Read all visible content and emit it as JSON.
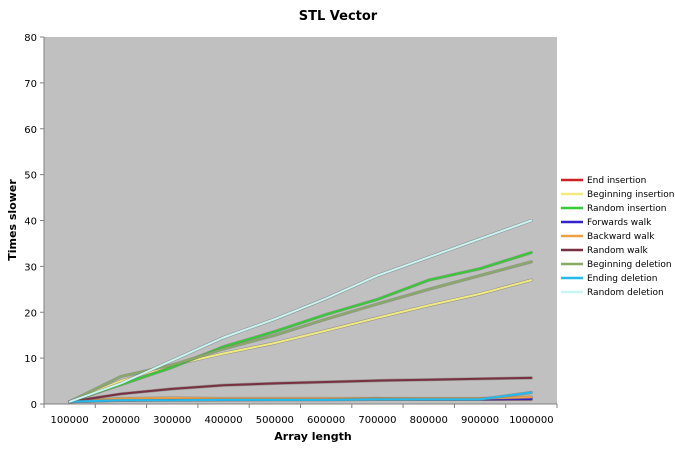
{
  "chart_data": {
    "type": "line",
    "title": "STL Vector",
    "xlabel": "Array length",
    "ylabel": "Times slower",
    "x": [
      100000,
      200000,
      300000,
      400000,
      500000,
      600000,
      700000,
      800000,
      900000,
      1000000
    ],
    "x_tick_labels": [
      "100000",
      "200000",
      "300000",
      "400000",
      "500000",
      "600000",
      "700000",
      "800000",
      "900000",
      "1000000"
    ],
    "ylim": [
      0,
      80
    ],
    "y_ticks": [
      0,
      10,
      20,
      30,
      40,
      50,
      60,
      70,
      80
    ],
    "grid": false,
    "plot_background": "#c0c0c0",
    "legend_position": "right",
    "series": [
      {
        "name": "End insertion",
        "color": "#cc2222",
        "values": [
          0.5,
          1,
          1,
          1,
          1,
          1,
          1,
          1,
          1,
          1
        ]
      },
      {
        "name": "Beginning insertion",
        "color": "#f2ea80",
        "values": [
          0.5,
          5,
          8.5,
          11,
          13.3,
          16,
          18.8,
          21.5,
          24,
          27
        ]
      },
      {
        "name": "Random insertion",
        "color": "#33cc33",
        "values": [
          0.5,
          4.2,
          8,
          12.5,
          15.8,
          19.5,
          22.8,
          27,
          29.5,
          33
        ]
      },
      {
        "name": "Forwards walk",
        "color": "#3322cc",
        "values": [
          0.5,
          0.8,
          0.9,
          0.9,
          1,
          1,
          1.2,
          1,
          1,
          1.1
        ]
      },
      {
        "name": "Backward walk",
        "color": "#f0a040",
        "values": [
          0.5,
          1.2,
          1.3,
          1.2,
          1.2,
          1.2,
          1.2,
          1.2,
          1.2,
          1.5
        ]
      },
      {
        "name": "Random walk",
        "color": "#7a3040",
        "values": [
          0.5,
          2.2,
          3.3,
          4.1,
          4.5,
          4.8,
          5.1,
          5.3,
          5.5,
          5.7
        ]
      },
      {
        "name": "Beginning deletion",
        "color": "#88aa66",
        "values": [
          0.5,
          6,
          8.5,
          12,
          15,
          18.5,
          21.8,
          25,
          28,
          31
        ]
      },
      {
        "name": "Ending deletion",
        "color": "#22bbee",
        "values": [
          0.5,
          0.8,
          0.8,
          0.9,
          0.9,
          0.9,
          1,
          1,
          1,
          2.5
        ]
      },
      {
        "name": "Random deletion",
        "color": "#c8f4f4",
        "values": [
          0.5,
          4.5,
          9.5,
          14.5,
          18.5,
          23,
          28,
          32,
          36,
          40
        ]
      }
    ]
  }
}
